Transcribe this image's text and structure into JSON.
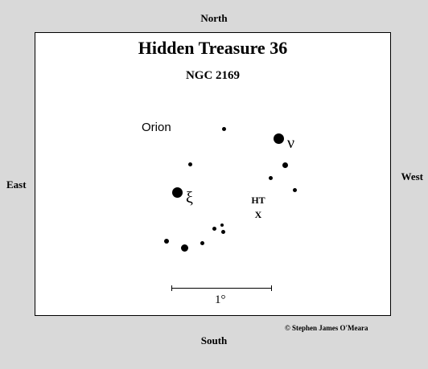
{
  "directions": {
    "north": "North",
    "south": "South",
    "east": "East",
    "west": "West"
  },
  "chart": {
    "title": "Hidden Treasure 36",
    "subtitle": "NGC 2169",
    "constellation": "Orion",
    "star_labels": {
      "nu": "ν",
      "xi": "ξ"
    },
    "target_label_line1": "HT",
    "target_label_line2": "X",
    "scale_label": "1°"
  },
  "copyright": "© Stephen James O'Meara",
  "colors": {
    "background": "#d9d9d9",
    "panel": "#ffffff",
    "ink": "#000000"
  }
}
